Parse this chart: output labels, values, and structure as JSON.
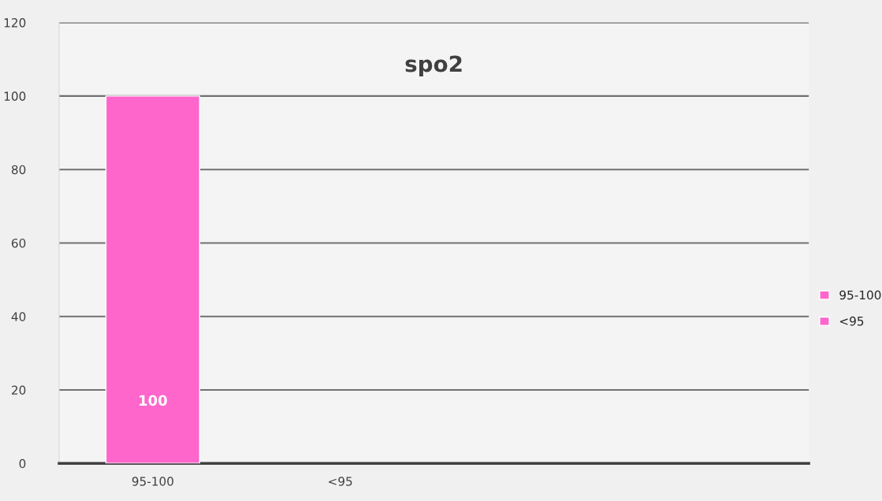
{
  "chart_data": {
    "type": "bar",
    "title": "spo2",
    "stacked": true,
    "categories": [
      "95-100",
      "<95",
      null,
      null
    ],
    "series": [
      {
        "name": "95-100",
        "color": "#ff66cc",
        "values": [
          100,
          null,
          null,
          null
        ]
      },
      {
        "name": "<95",
        "color": "#ff66cc",
        "values": [
          null,
          null,
          null,
          null
        ]
      }
    ],
    "data_labels": true,
    "ylim": [
      0,
      120
    ],
    "yticks": [
      0,
      20,
      40,
      60,
      80,
      100,
      120
    ],
    "grid": "y",
    "legend": "right"
  }
}
